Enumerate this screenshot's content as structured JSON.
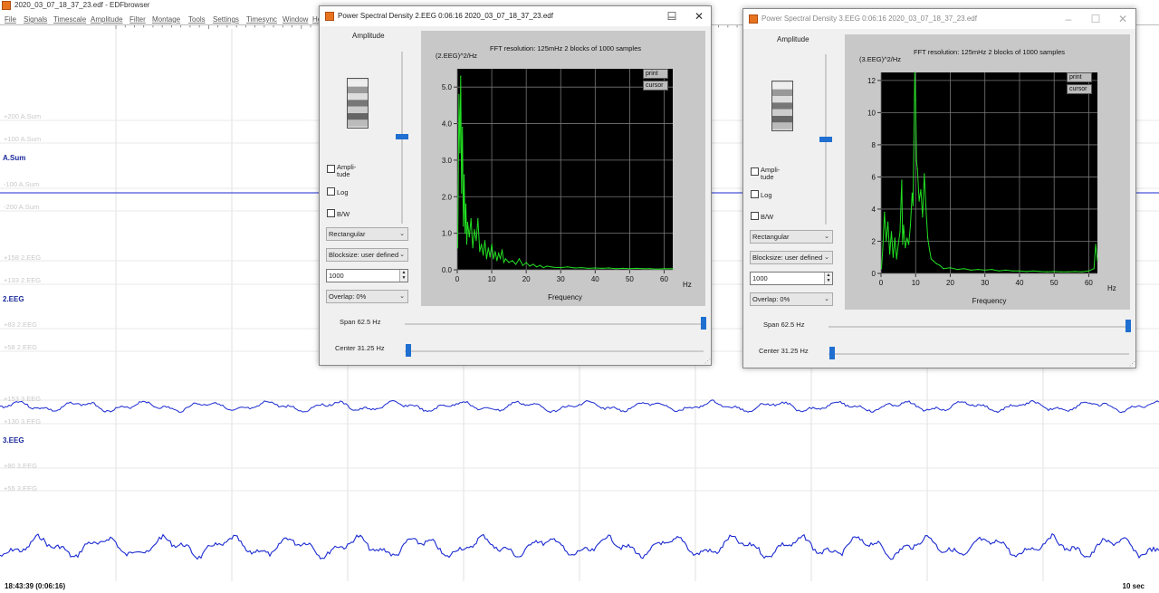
{
  "app": {
    "window_title": "2020_03_07_18_37_23.edf - EDFbrowser",
    "menu": [
      "File",
      "Signals",
      "Timescale",
      "Amplitude",
      "Filter",
      "Montage",
      "Tools",
      "Settings",
      "Timesync",
      "Window",
      "Help"
    ]
  },
  "signals": [
    {
      "name": "A.Sum",
      "scale_labels": [
        "+200 A.Sum",
        "+100 A.Sum",
        "-100 A.Sum",
        "-200 A.Sum"
      ]
    },
    {
      "name": "2.EEG",
      "scale_labels": [
        "+158 2.EEG",
        "+133 2.EEG",
        "+83 2.EEG",
        "+58 2.EEG"
      ]
    },
    {
      "name": "3.EEG",
      "scale_labels": [
        "+153 3.EEG",
        "+130 3.EEG",
        "+80 3.EEG",
        "+55 3.EEG"
      ]
    }
  ],
  "status": {
    "time": "18:43:39 (0:06:16)",
    "timescale": "10 sec"
  },
  "colors": {
    "trace": "#1a2ad0",
    "psd_line": "#22dd22",
    "plot_bg": "#000000",
    "accent": "#1f6fd0"
  },
  "psd_windows": [
    {
      "title": "Power Spectral Density    2.EEG    0:06:16    2020_03_07_18_37_23.edf",
      "amplitude_label": "Amplitude",
      "checkboxes": [
        {
          "label_line1": "Ampli-",
          "label_line2": "tude",
          "checked": false
        },
        {
          "label_line1": "Log",
          "label_line2": "",
          "checked": false
        },
        {
          "label_line1": "B/W",
          "label_line2": "",
          "checked": false
        }
      ],
      "window_select": "Rectangular",
      "blocksize_select": "Blocksize: user defined",
      "blocksize_value": "1000",
      "overlap_select": "Overlap: 0%",
      "plot_header": "FFT resolution: 125mHz   2 blocks of 1000 samples",
      "y_unit": "(2.EEG)^2/Hz",
      "x_unit": "Hz",
      "x_label": "Frequency",
      "print_label": "print",
      "cursor_label": "cursor",
      "span_label": "Span 62.5 Hz",
      "center_label": "Center 31.25 Hz"
    },
    {
      "title": "Power Spectral Density    3.EEG    0:06:16    2020_03_07_18_37_23.edf",
      "amplitude_label": "Amplitude",
      "checkboxes": [
        {
          "label_line1": "Ampli-",
          "label_line2": "tude",
          "checked": false
        },
        {
          "label_line1": "Log",
          "label_line2": "",
          "checked": false
        },
        {
          "label_line1": "B/W",
          "label_line2": "",
          "checked": false
        }
      ],
      "window_select": "Rectangular",
      "blocksize_select": "Blocksize: user defined",
      "blocksize_value": "1000",
      "overlap_select": "Overlap: 0%",
      "plot_header": "FFT resolution: 125mHz   2 blocks of 1000 samples",
      "y_unit": "(3.EEG)^2/Hz",
      "x_unit": "Hz",
      "x_label": "Frequency",
      "print_label": "print",
      "cursor_label": "cursor",
      "span_label": "Span 62.5 Hz",
      "center_label": "Center 31.25 Hz"
    }
  ],
  "chart_data": [
    {
      "type": "line",
      "signal": "2.EEG",
      "xlim": [
        0,
        62.5
      ],
      "ylim": [
        0,
        5.5
      ],
      "x_ticks": [
        0,
        10,
        20,
        30,
        40,
        50,
        60
      ],
      "y_ticks": [
        0.0,
        1.0,
        2.0,
        3.0,
        4.0,
        5.0
      ],
      "y_tick_labels": [
        "0.0",
        "1.0",
        "2.0",
        "3.0",
        "4.0",
        "5.0"
      ],
      "grid": true,
      "points": [
        [
          0.125,
          0.6
        ],
        [
          0.5,
          4.8
        ],
        [
          0.75,
          3.2
        ],
        [
          1.0,
          5.3
        ],
        [
          1.25,
          2.1
        ],
        [
          1.5,
          3.9
        ],
        [
          1.75,
          1.2
        ],
        [
          2.0,
          2.6
        ],
        [
          2.25,
          1.0
        ],
        [
          2.5,
          1.8
        ],
        [
          2.75,
          0.7
        ],
        [
          3.0,
          1.3
        ],
        [
          3.5,
          0.9
        ],
        [
          4.0,
          1.4
        ],
        [
          4.5,
          0.6
        ],
        [
          5.0,
          1.1
        ],
        [
          5.5,
          0.8
        ],
        [
          6.0,
          1.4
        ],
        [
          6.5,
          0.5
        ],
        [
          7.0,
          0.7
        ],
        [
          7.5,
          0.4
        ],
        [
          8.0,
          0.8
        ],
        [
          8.5,
          0.3
        ],
        [
          9.0,
          0.6
        ],
        [
          9.5,
          0.35
        ],
        [
          10.0,
          0.7
        ],
        [
          10.5,
          0.3
        ],
        [
          11.0,
          0.5
        ],
        [
          11.5,
          0.25
        ],
        [
          12.0,
          0.45
        ],
        [
          12.5,
          0.3
        ],
        [
          13.0,
          0.55
        ],
        [
          13.5,
          0.2
        ],
        [
          14.0,
          0.3
        ],
        [
          15.0,
          0.2
        ],
        [
          16.0,
          0.25
        ],
        [
          17.0,
          0.15
        ],
        [
          18.0,
          0.3
        ],
        [
          19.0,
          0.12
        ],
        [
          20.0,
          0.2
        ],
        [
          21.0,
          0.1
        ],
        [
          22.0,
          0.15
        ],
        [
          23.0,
          0.08
        ],
        [
          24.0,
          0.12
        ],
        [
          25.0,
          0.06
        ],
        [
          26.0,
          0.1
        ],
        [
          28.0,
          0.07
        ],
        [
          30.0,
          0.06
        ],
        [
          32.0,
          0.08
        ],
        [
          34.0,
          0.05
        ],
        [
          36.0,
          0.06
        ],
        [
          38.0,
          0.04
        ],
        [
          40.0,
          0.05
        ],
        [
          42.0,
          0.04
        ],
        [
          44.0,
          0.05
        ],
        [
          46.0,
          0.03
        ],
        [
          48.0,
          0.04
        ],
        [
          50.0,
          0.03
        ],
        [
          52.0,
          0.04
        ],
        [
          54.0,
          0.03
        ],
        [
          56.0,
          0.03
        ],
        [
          58.0,
          0.02
        ],
        [
          60.0,
          0.03
        ],
        [
          62.5,
          0.03
        ]
      ]
    },
    {
      "type": "line",
      "signal": "3.EEG",
      "xlim": [
        0,
        62.5
      ],
      "ylim": [
        0,
        12.5
      ],
      "x_ticks": [
        0,
        10,
        20,
        30,
        40,
        50,
        60
      ],
      "y_ticks": [
        0,
        2,
        4,
        6,
        8,
        10,
        12
      ],
      "y_tick_labels": [
        "0",
        "2",
        "4",
        "6",
        "8",
        "10",
        "12"
      ],
      "grid": true,
      "points": [
        [
          0.125,
          0.3
        ],
        [
          0.5,
          1.5
        ],
        [
          1.0,
          3.8
        ],
        [
          1.5,
          2.0
        ],
        [
          2.0,
          3.2
        ],
        [
          2.5,
          1.2
        ],
        [
          3.0,
          2.6
        ],
        [
          3.5,
          1.0
        ],
        [
          4.0,
          2.2
        ],
        [
          4.5,
          0.9
        ],
        [
          5.0,
          1.8
        ],
        [
          5.5,
          2.6
        ],
        [
          6.0,
          5.8
        ],
        [
          6.25,
          1.8
        ],
        [
          6.5,
          3.0
        ],
        [
          7.0,
          1.6
        ],
        [
          7.5,
          2.2
        ],
        [
          8.0,
          1.8
        ],
        [
          8.5,
          3.0
        ],
        [
          9.0,
          5.0
        ],
        [
          9.25,
          4.2
        ],
        [
          9.5,
          8.2
        ],
        [
          9.75,
          12.5
        ],
        [
          10.0,
          10.8
        ],
        [
          10.25,
          7.0
        ],
        [
          10.5,
          6.5
        ],
        [
          11.0,
          4.5
        ],
        [
          11.5,
          5.2
        ],
        [
          12.0,
          3.5
        ],
        [
          12.5,
          6.2
        ],
        [
          13.0,
          4.0
        ],
        [
          13.5,
          2.2
        ],
        [
          14.0,
          1.5
        ],
        [
          14.5,
          0.9
        ],
        [
          15.0,
          0.8
        ],
        [
          16.0,
          0.6
        ],
        [
          17.0,
          0.5
        ],
        [
          18.0,
          0.3
        ],
        [
          20.0,
          0.35
        ],
        [
          22.0,
          0.25
        ],
        [
          24.0,
          0.3
        ],
        [
          26.0,
          0.2
        ],
        [
          28.0,
          0.25
        ],
        [
          30.0,
          0.2
        ],
        [
          32.0,
          0.25
        ],
        [
          34.0,
          0.15
        ],
        [
          36.0,
          0.2
        ],
        [
          38.0,
          0.15
        ],
        [
          40.0,
          0.15
        ],
        [
          42.0,
          0.12
        ],
        [
          44.0,
          0.15
        ],
        [
          46.0,
          0.12
        ],
        [
          48.0,
          0.1
        ],
        [
          50.0,
          0.12
        ],
        [
          52.0,
          0.1
        ],
        [
          54.0,
          0.1
        ],
        [
          56.0,
          0.12
        ],
        [
          58.0,
          0.1
        ],
        [
          60.0,
          0.15
        ],
        [
          61.5,
          0.3
        ],
        [
          62.0,
          1.8
        ],
        [
          62.5,
          0.8
        ]
      ]
    }
  ]
}
